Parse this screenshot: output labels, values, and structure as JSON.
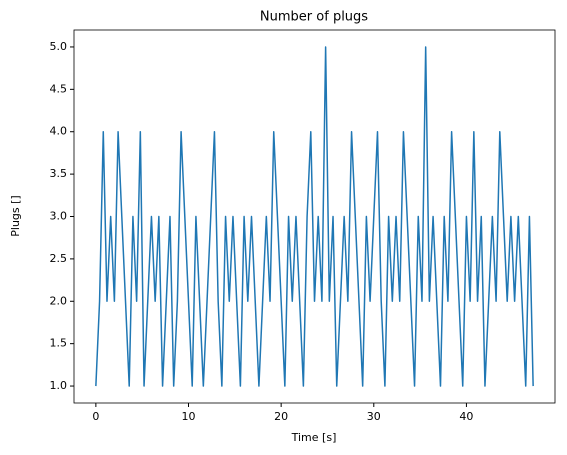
{
  "chart_data": {
    "type": "line",
    "title": "Number of plugs",
    "xlabel": "Time [s]",
    "ylabel": "Plugs []",
    "color": "#1f77b4",
    "x": [
      0,
      0.4,
      0.8,
      1.2,
      1.6,
      2,
      2.4,
      2.8,
      3.2,
      3.6,
      4,
      4.4,
      4.8,
      5.2,
      5.6,
      6,
      6.4,
      6.8,
      7.2,
      7.6,
      8,
      8.4,
      8.8,
      9.2,
      9.6,
      10,
      10.4,
      10.8,
      11.2,
      11.6,
      12,
      12.4,
      12.8,
      13.2,
      13.6,
      14,
      14.4,
      14.8,
      15.2,
      15.6,
      16,
      16.4,
      16.8,
      17.2,
      17.6,
      18,
      18.4,
      18.8,
      19.2,
      19.6,
      20,
      20.4,
      20.8,
      21.2,
      21.6,
      22,
      22.4,
      22.8,
      23.2,
      23.6,
      24,
      24.4,
      24.8,
      25.2,
      25.6,
      26,
      26.4,
      26.8,
      27.2,
      27.6,
      28,
      28.4,
      28.8,
      29.2,
      29.6,
      30,
      30.4,
      30.8,
      31.2,
      31.6,
      32,
      32.4,
      32.8,
      33.2,
      33.6,
      34,
      34.4,
      34.8,
      35.2,
      35.6,
      36,
      36.4,
      36.8,
      37.2,
      37.6,
      38,
      38.4,
      38.8,
      39.2,
      39.6,
      40,
      40.4,
      40.8,
      41.2,
      41.6,
      42,
      42.4,
      42.8,
      43.2,
      43.6,
      44,
      44.4,
      44.8,
      45.2,
      45.6,
      46,
      46.4,
      46.8,
      47.2
    ],
    "values": [
      1,
      2,
      4,
      2,
      3,
      2,
      4,
      3,
      2,
      1,
      3,
      2,
      4,
      1,
      2,
      3,
      2,
      3,
      1,
      2,
      3,
      1,
      2,
      4,
      3,
      2,
      1,
      3,
      2,
      1,
      2,
      3,
      4,
      2,
      1,
      3,
      2,
      3,
      2,
      1,
      3,
      2,
      3,
      2,
      1,
      2,
      3,
      2,
      4,
      3,
      2,
      1,
      3,
      2,
      3,
      2,
      1,
      3,
      4,
      2,
      3,
      2,
      5,
      2,
      3,
      1,
      2,
      3,
      2,
      4,
      3,
      2,
      1,
      3,
      2,
      3,
      4,
      2,
      1,
      3,
      2,
      3,
      2,
      4,
      3,
      2,
      1,
      3,
      2,
      5,
      2,
      3,
      2,
      1,
      3,
      2,
      4,
      3,
      2,
      1,
      3,
      2,
      4,
      2,
      3,
      1,
      2,
      3,
      2,
      4,
      3,
      2,
      3,
      2,
      3,
      2,
      1,
      3,
      1
    ],
    "xlim": [
      -2.36,
      49.56
    ],
    "ylim": [
      0.8,
      5.2
    ],
    "xticks": [
      0,
      10,
      20,
      30,
      40
    ],
    "yticks": [
      {
        "value": 1,
        "label": "1.0"
      },
      1.5,
      {
        "value": 2,
        "label": "2.0"
      },
      2.5,
      {
        "value": 3,
        "label": "3.0"
      },
      3.5,
      {
        "value": 4,
        "label": "4.0"
      },
      4.5,
      {
        "value": 5,
        "label": "5.0"
      }
    ]
  }
}
